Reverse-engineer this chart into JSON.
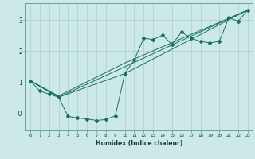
{
  "xlabel": "Humidex (Indice chaleur)",
  "ylabel": "",
  "background_color": "#cce8e8",
  "grid_color": "#aacece",
  "line_color": "#1a7060",
  "xlim": [
    -0.5,
    23.5
  ],
  "ylim": [
    -0.55,
    3.55
  ],
  "yticks": [
    0,
    1,
    2,
    3
  ],
  "ytick_labels": [
    "-0",
    "1",
    "2",
    "3"
  ],
  "xticks": [
    0,
    1,
    2,
    3,
    4,
    5,
    6,
    7,
    8,
    9,
    10,
    11,
    12,
    13,
    14,
    15,
    16,
    17,
    18,
    19,
    20,
    21,
    22,
    23
  ],
  "series_main": {
    "x": [
      0,
      1,
      2,
      3,
      4,
      5,
      6,
      7,
      8,
      9,
      10,
      11,
      12,
      13,
      14,
      15,
      16,
      17,
      18,
      19,
      20,
      21,
      22,
      23
    ],
    "y": [
      1.05,
      0.72,
      0.62,
      0.52,
      -0.1,
      -0.15,
      -0.18,
      -0.23,
      -0.2,
      -0.08,
      1.28,
      1.72,
      2.42,
      2.38,
      2.52,
      2.22,
      2.62,
      2.42,
      2.32,
      2.27,
      2.32,
      3.08,
      2.97,
      3.33
    ]
  },
  "trend_lines": [
    {
      "x": [
        0,
        3,
        10,
        23
      ],
      "y": [
        1.05,
        0.52,
        1.28,
        3.33
      ]
    },
    {
      "x": [
        0,
        3,
        10,
        23
      ],
      "y": [
        1.05,
        0.52,
        1.5,
        3.33
      ]
    },
    {
      "x": [
        0,
        3,
        10,
        23
      ],
      "y": [
        1.05,
        0.56,
        1.62,
        3.33
      ]
    }
  ]
}
